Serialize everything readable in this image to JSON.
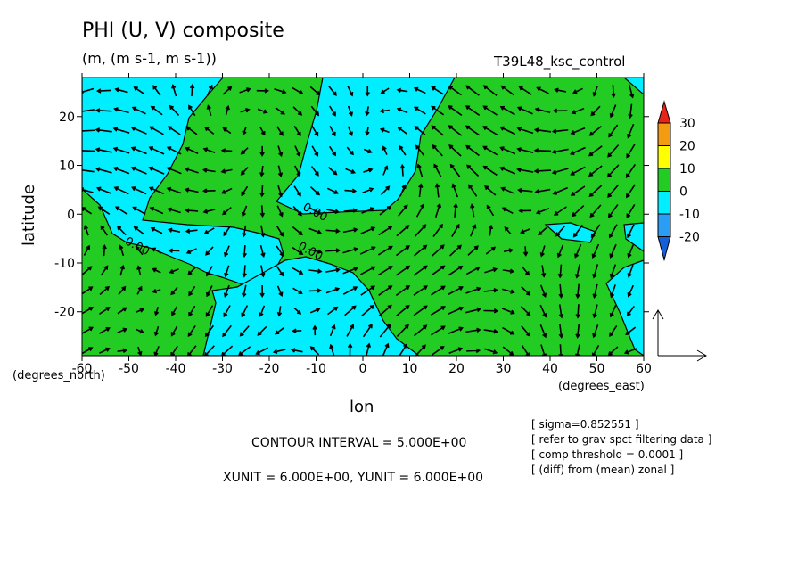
{
  "title": "PHI (U, V) composite",
  "subtitle": "(m, (m s-1, m s-1))",
  "run_label": "T39L48_ksc_control",
  "chart_data": {
    "type": "contour+vector",
    "x_axis": {
      "label": "lon",
      "units": "(degrees_east)",
      "range": [
        -60,
        60
      ],
      "ticks": [
        -60,
        -50,
        -40,
        -30,
        -20,
        -10,
        0,
        10,
        20,
        30,
        40,
        50,
        60
      ]
    },
    "y_axis": {
      "label": "latitude",
      "units": "(degrees_north)",
      "range": [
        -29,
        28
      ],
      "ticks": [
        -20,
        -10,
        0,
        10,
        20
      ]
    },
    "contour_labels": [
      {
        "text": "0.00",
        "lon": -13,
        "lat": 1
      },
      {
        "text": "0.00",
        "lon": -51,
        "lat": -6
      },
      {
        "text": "0.00",
        "lon": -14,
        "lat": -7
      }
    ],
    "colorbar": {
      "labels": [
        "30",
        "20",
        "10",
        "0",
        "-10",
        "-20"
      ],
      "colors": {
        "gt30": "#e8231c",
        "20-30": "#f39c12",
        "10-20": "#ffff00",
        "0-10": "#22cc22",
        "-10-0": "#00eeff",
        "-20--10": "#2a9df4",
        "lt-20": "#1560d9"
      }
    },
    "fill_colors": {
      "positive": "#22cc22",
      "negative": "#00eeff"
    },
    "vector_scale": {
      "xunit": 6.0,
      "yunit": 6.0
    }
  },
  "contour_interval": "CONTOUR INTERVAL = 5.000E+00",
  "units_line": "XUNIT = 6.000E+00, YUNIT = 6.000E+00",
  "notes": [
    "[ sigma=0.852551 ]",
    "[ refer to grav spct filtering data ]",
    "[ comp threshold = 0.0001 ]",
    "[ (diff) from (mean) zonal ]"
  ]
}
